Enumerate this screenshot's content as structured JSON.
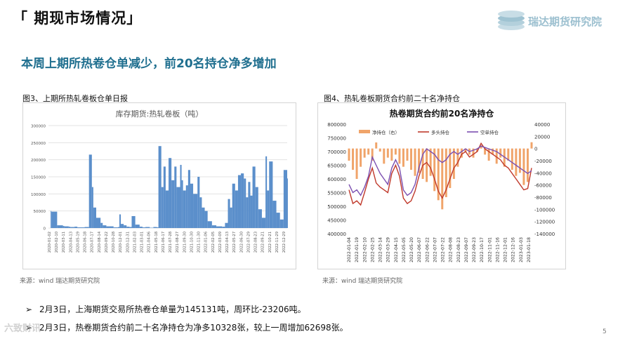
{
  "header": {
    "section_title": "「 期现市场情况」",
    "logo_text": "瑞达期货研究院"
  },
  "headline": "本周上期所热卷仓单减少，前20名持仓净多增加",
  "figures": [
    {
      "caption": "图3、上期所热轧卷板仓单日报",
      "source": "来源：wind   瑞达期货研究院"
    },
    {
      "caption": "图4、热轧卷板期货合约前二十名净持仓",
      "source": "来源：wind   瑞达期货研究院"
    }
  ],
  "bullets": [
    {
      "marker": "➢",
      "text": "2月3日，上海期货交易所热卷仓单量为145131吨，周环比-23206吨。"
    },
    {
      "marker": "➢",
      "text": "2月3日，热卷期货合约前二十名净持仓为净多10328张，较上一周增加62698张。"
    }
  ],
  "page_number": "5",
  "watermark": "六致财讯",
  "colors": {
    "headline": "#1f6f8f",
    "bars1": "#5b8fcb",
    "net": "#f0a46a",
    "long": "#c0392b",
    "short": "#7b4fb0"
  },
  "chart_data": [
    {
      "type": "area",
      "title": "库存期货:热轧卷板（吨）",
      "ylim": [
        0,
        300000
      ],
      "yticks": [
        "300000",
        "250000",
        "200000",
        "150000",
        "100000",
        "50000",
        "0"
      ],
      "xticks": [
        "2020-01-02",
        "2020-02-10",
        "2020-03-11",
        "2020-04-13",
        "2020-05-19",
        "2020-06-18",
        "2020-07-17",
        "2020-08-14",
        "2020-09-22",
        "2020-10-28",
        "2020-12-01",
        "2020-12-31",
        "2021-02-03",
        "2021-03-01",
        "2021-04-06",
        "2021-05-18",
        "2021-06-17",
        "2021-07-28",
        "2021-08-27",
        "2021-09-30",
        "2021-10-30",
        "2021-11-30",
        "2022-01-06",
        "2022-02-05",
        "2022-03-09",
        "2022-04-13",
        "2022-05-27",
        "2022-06-30",
        "2022-07-29",
        "2022-08-23",
        "2022-09-21",
        "2022-10-21",
        "2022-11-29",
        "2022-12-29"
      ],
      "x_index": [
        0,
        3,
        4,
        12,
        20,
        22,
        28,
        30,
        36,
        40,
        50,
        56,
        60,
        62,
        66,
        72,
        75,
        80,
        82,
        84,
        90,
        96,
        98,
        100,
        104,
        108,
        112,
        115,
        120,
        126,
        130,
        134,
        140,
        145,
        150,
        152,
        156,
        159,
        162,
        166,
        170,
        174,
        177,
        182,
        184,
        186,
        190,
        193,
        196,
        200,
        206,
        209,
        212,
        216,
        220,
        226,
        232,
        240,
        244,
        248,
        251,
        254,
        258,
        262,
        266,
        270,
        273,
        276,
        279,
        282,
        286,
        290,
        295,
        300,
        302,
        305,
        310,
        315,
        320,
        325,
        330
      ],
      "values": [
        0,
        50000,
        48000,
        8000,
        6000,
        5000,
        4000,
        3000,
        4000,
        2000,
        3000,
        215000,
        120000,
        60000,
        30000,
        15000,
        8000,
        5000,
        5000,
        5000,
        2000,
        3000,
        40000,
        12000,
        8000,
        4000,
        3000,
        35000,
        10000,
        4000,
        2000,
        3000,
        1000,
        3000,
        2000,
        240000,
        120000,
        180000,
        110000,
        205000,
        140000,
        180000,
        120000,
        185000,
        140000,
        110000,
        125000,
        170000,
        130000,
        100000,
        150000,
        90000,
        60000,
        50000,
        20000,
        8000,
        5000,
        4000,
        15000,
        85000,
        60000,
        130000,
        110000,
        155000,
        160000,
        145000,
        90000,
        135000,
        95000,
        180000,
        120000,
        55000,
        30000,
        210000,
        110000,
        195000,
        80000,
        45000,
        25000,
        170000,
        145131
      ]
    },
    {
      "type": "line",
      "title": "热卷期货合约前20名净持仓",
      "left_ylim": [
        400000,
        800000
      ],
      "right_ylim": [
        -140000,
        40000
      ],
      "left_yticks": [
        "800000",
        "750000",
        "700000",
        "650000",
        "600000",
        "550000",
        "500000",
        "450000",
        "400000"
      ],
      "right_yticks": [
        "40000",
        "20000",
        "0",
        "-20000",
        "-40000",
        "-60000",
        "-80000",
        "-100000",
        "-120000",
        "-140000"
      ],
      "xticks": [
        "2022-01-04",
        "2022-01-19",
        "2022-02-10",
        "2022-02-25",
        "2022-03-14",
        "2022-03-29",
        "2022-04-15",
        "2022-05-05",
        "2022-05-20",
        "2022-06-07",
        "2022-06-22",
        "2022-07-07",
        "2022-07-22",
        "2022-08-08",
        "2022-08-23",
        "2022-09-07",
        "2022-09-23",
        "2022-10-17",
        "2022-11-01",
        "2022-11-16",
        "2022-12-01",
        "2022-12-16",
        "2023-01-03",
        "2023-01-18"
      ],
      "series": [
        {
          "name": "净持仓（右）",
          "axis": "right",
          "style": "bar",
          "values": [
            -20000,
            -35000,
            -50000,
            -30000,
            -15000,
            -10000,
            -20000,
            10000,
            -5000,
            -25000,
            -15000,
            -20000,
            -10000,
            -25000,
            -30000,
            -20000,
            -35000,
            -45000,
            -40000,
            -50000,
            -55000,
            -45000,
            -70000,
            -85000,
            -100000,
            -80000,
            -65000,
            -50000,
            -30000,
            -15000,
            -5000,
            -10000,
            -15000,
            -5000,
            5000,
            -10000,
            -20000,
            -10000,
            -25000,
            -15000,
            -30000,
            -20000,
            -35000,
            -45000,
            -40000,
            -60000,
            -55000,
            10328
          ]
        },
        {
          "name": "多头持仓",
          "axis": "left",
          "values": [
            560000,
            510000,
            520000,
            505000,
            550000,
            600000,
            640000,
            585000,
            570000,
            560000,
            550000,
            620000,
            650000,
            610000,
            530000,
            510000,
            520000,
            555000,
            610000,
            650000,
            660000,
            640000,
            600000,
            555000,
            530000,
            560000,
            600000,
            640000,
            660000,
            690000,
            700000,
            680000,
            690000,
            700000,
            730000,
            710000,
            700000,
            690000,
            680000,
            670000,
            650000,
            640000,
            620000,
            600000,
            580000,
            560000,
            565000,
            640000
          ]
        },
        {
          "name": "空单持仓",
          "axis": "left",
          "values": [
            580000,
            550000,
            560000,
            540000,
            570000,
            610000,
            680000,
            650000,
            620000,
            600000,
            580000,
            640000,
            670000,
            640000,
            560000,
            540000,
            550000,
            580000,
            640000,
            690000,
            710000,
            700000,
            690000,
            670000,
            660000,
            670000,
            690000,
            700000,
            690000,
            700000,
            710000,
            700000,
            705000,
            710000,
            720000,
            715000,
            710000,
            705000,
            700000,
            690000,
            680000,
            670000,
            660000,
            650000,
            640000,
            630000,
            620000,
            630000
          ]
        }
      ]
    }
  ]
}
